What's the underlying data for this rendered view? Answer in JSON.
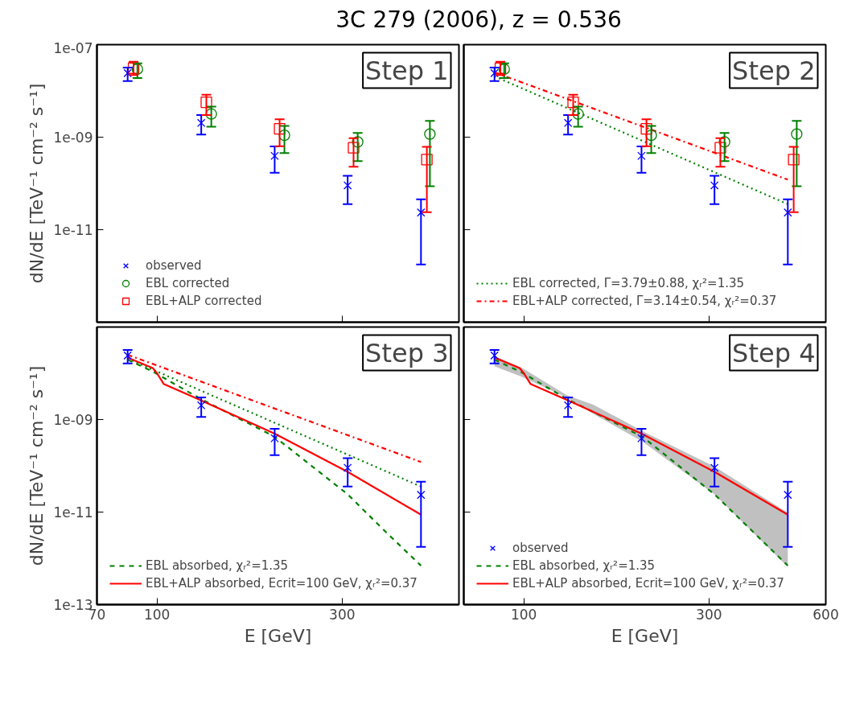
{
  "chart_data": [
    {
      "type": "scatter",
      "title": "3C 279 (2006), z = 0.536",
      "ylabel": "dN/dE [TeV⁻¹ cm⁻² s⁻¹]",
      "annotations": [
        "Step 1"
      ],
      "log": "xy",
      "xlim": [
        70,
        600
      ],
      "ylim": [
        1e-13,
        1e-07
      ],
      "xticks": [
        100,
        300
      ],
      "yticks": [
        {
          "value": 1e-07,
          "label": "1e-07"
        },
        {
          "value": 1e-09,
          "label": "1e-09"
        },
        {
          "value": 1e-11,
          "label": "1e-11"
        },
        {
          "value": 1e-13,
          "label": null
        }
      ],
      "tick_labels": "y",
      "grid": false,
      "legend": "bottom left",
      "series": [
        {
          "name": "observed",
          "color": "#0000ff",
          "marker": "cross",
          "x": [
            84,
            130,
            201,
            310,
            479
          ],
          "values": [
            2.43e-08,
            2.03e-09,
            3.94e-10,
            9.06e-11,
            2.35e-11
          ],
          "errors": [
            [
              1.64e-08,
              3.19e-08
            ],
            [
              1.14e-09,
              3.01e-09
            ],
            [
              1.7e-10,
              6.3e-10
            ],
            [
              3.56e-11,
              1.47e-10
            ],
            [
              1.77e-12,
              4.52e-11
            ]
          ]
        },
        {
          "name": "EBL corrected",
          "color": "#008000",
          "marker": "circle",
          "x": [
            89,
            138,
            213,
            329,
            505
          ],
          "values": [
            2.95e-08,
            3.17e-09,
            1.1e-09,
            7.9e-10,
            1.17e-09
          ],
          "errors": [
            [
              1.89e-08,
              3.94e-08
            ],
            [
              1.69e-09,
              4.58e-09
            ],
            [
              4.55e-10,
              1.76e-09
            ],
            [
              3.03e-10,
              1.23e-09
            ],
            [
              8.7e-11,
              2.26e-09
            ]
          ]
        },
        {
          "name": "EBL+ALP corrected",
          "color": "#ff0000",
          "marker": "square",
          "x": [
            87,
            134,
            207,
            321,
            496
          ],
          "values": [
            3.1e-08,
            5.7e-09,
            1.52e-09,
            5.9e-10,
            3.28e-10
          ],
          "errors": [
            [
              2.21e-08,
              4.25e-08
            ],
            [
              3e-09,
              8.3e-09
            ],
            [
              6.4e-10,
              2.44e-09
            ],
            [
              2.3e-10,
              9.5e-10
            ],
            [
              2.4e-11,
              6.2e-10
            ]
          ]
        }
      ]
    },
    {
      "type": "scatter",
      "annotations": [
        "Step 2"
      ],
      "log": "xy",
      "xlim": [
        70,
        600
      ],
      "ylim": [
        1e-13,
        1e-07
      ],
      "xticks": [
        100,
        300
      ],
      "yticks": [
        {
          "value": 1e-07,
          "label": null
        },
        {
          "value": 1e-09,
          "label": null
        },
        {
          "value": 1e-11,
          "label": null
        },
        {
          "value": 1e-13,
          "label": null
        }
      ],
      "tick_labels": false,
      "grid": false,
      "legend": "bottom left",
      "series": [
        {
          "color": "#0000ff",
          "marker": "cross",
          "x": [
            84,
            130,
            201,
            310,
            479
          ],
          "values": [
            2.43e-08,
            2.03e-09,
            3.94e-10,
            9.06e-11,
            2.35e-11
          ],
          "errors": [
            [
              1.64e-08,
              3.19e-08
            ],
            [
              1.14e-09,
              3.01e-09
            ],
            [
              1.7e-10,
              6.3e-10
            ],
            [
              3.56e-11,
              1.47e-10
            ],
            [
              1.77e-12,
              4.52e-11
            ]
          ]
        },
        {
          "color": "#008000",
          "marker": "circle",
          "x": [
            89,
            138,
            213,
            329,
            505
          ],
          "values": [
            2.95e-08,
            3.17e-09,
            1.1e-09,
            7.9e-10,
            1.17e-09
          ],
          "errors": [
            [
              1.89e-08,
              3.94e-08
            ],
            [
              1.69e-09,
              4.58e-09
            ],
            [
              4.55e-10,
              1.76e-09
            ],
            [
              3.03e-10,
              1.23e-09
            ],
            [
              8.7e-11,
              2.26e-09
            ]
          ]
        },
        {
          "color": "#ff0000",
          "marker": "square",
          "x": [
            87,
            134,
            207,
            321,
            496
          ],
          "values": [
            3.1e-08,
            5.7e-09,
            1.52e-09,
            5.9e-10,
            3.28e-10
          ],
          "errors": [
            [
              2.21e-08,
              4.25e-08
            ],
            [
              3e-09,
              8.3e-09
            ],
            [
              6.4e-10,
              2.44e-09
            ],
            [
              2.3e-10,
              9.5e-10
            ],
            [
              2.4e-11,
              6.2e-10
            ]
          ]
        },
        {
          "type": "line",
          "name": "EBL corrected, Γ=3.79±0.88, χᵣ²=1.35",
          "color": "#008000",
          "line_style": "dotted",
          "x": [
            84,
            479
          ],
          "values": [
            2.07e-08,
            3.56e-11
          ]
        },
        {
          "type": "line",
          "name": "EBL+ALP corrected, Γ=3.14±0.54, χᵣ²=0.37",
          "color": "#ff0000",
          "line_style": "dashdot",
          "x": [
            84,
            479
          ],
          "values": [
            2.52e-08,
            1.21e-10
          ]
        }
      ]
    },
    {
      "type": "scatter",
      "ylabel": "dN/dE [TeV⁻¹ cm⁻² s⁻¹]",
      "xlabel": "E [GeV]",
      "annotations": [
        "Step 3"
      ],
      "log": "xy",
      "xlim": [
        70,
        600
      ],
      "ylim": [
        1e-13,
        1e-07
      ],
      "xticks": [
        70,
        100,
        300
      ],
      "yticks": [
        {
          "value": 1e-07,
          "label": null
        },
        {
          "value": 1e-09,
          "label": "1e-09"
        },
        {
          "value": 1e-11,
          "label": "1e-11"
        },
        {
          "value": 1e-13,
          "label": "1e-13"
        }
      ],
      "grid": false,
      "legend": "bottom left",
      "series": [
        {
          "type": "line",
          "color": "#008000",
          "line_style": "dotted",
          "x": [
            84,
            479
          ],
          "values": [
            2.07e-08,
            3.56e-11
          ]
        },
        {
          "type": "line",
          "color": "#ff0000",
          "line_style": "dashdot",
          "x": [
            84,
            479
          ],
          "values": [
            2.52e-08,
            1.21e-10
          ]
        },
        {
          "type": "line",
          "name": "EBL absorbed, χᵣ²=1.35",
          "color": "#008000",
          "line_style": "dashed",
          "x": [
            84,
            97.5,
            130,
            201,
            310,
            387,
            479
          ],
          "values": [
            1.97e-08,
            1.09e-08,
            2.75e-09,
            4.25e-10,
            2.42e-11,
            3.85e-12,
            6.95e-13
          ]
        },
        {
          "type": "line",
          "name": "EBL+ALP absorbed, Ecrit=100 GeV, χᵣ²=0.37",
          "color": "#ff0000",
          "line_style": "solid",
          "x": [
            84,
            97.5,
            100,
            104,
            130,
            201,
            310,
            479
          ],
          "values": [
            2.19e-08,
            1.3e-08,
            1e-08,
            5.9e-09,
            2.58e-09,
            4.98e-10,
            7.41e-11,
            8.8e-12
          ]
        },
        {
          "color": "#0000ff",
          "marker": "cross",
          "x": [
            84,
            130,
            201,
            310,
            479
          ],
          "values": [
            2.43e-08,
            2.03e-09,
            3.94e-10,
            9.06e-11,
            2.35e-11
          ],
          "errors": [
            [
              1.64e-08,
              3.19e-08
            ],
            [
              1.14e-09,
              3.01e-09
            ],
            [
              1.7e-10,
              6.3e-10
            ],
            [
              3.56e-11,
              1.47e-10
            ],
            [
              1.77e-12,
              4.52e-11
            ]
          ]
        }
      ]
    },
    {
      "type": "scatter",
      "xlabel": "E [GeV]",
      "annotations": [
        "Step 4"
      ],
      "log": "xy",
      "xlim": [
        70,
        600
      ],
      "ylim": [
        1e-13,
        1e-07
      ],
      "xticks": [
        100,
        300,
        600
      ],
      "yticks": [
        {
          "value": 1e-07,
          "label": null
        },
        {
          "value": 1e-09,
          "label": null
        },
        {
          "value": 1e-11,
          "label": null
        },
        {
          "value": 1e-13,
          "label": null
        }
      ],
      "tick_labels": "x",
      "grid": false,
      "legend": "bottom left",
      "series": [
        {
          "name": "observed",
          "color": "#0000ff",
          "marker": "cross",
          "x": [
            84,
            130,
            201,
            310,
            479
          ],
          "values": [
            2.43e-08,
            2.03e-09,
            3.94e-10,
            9.06e-11,
            2.35e-11
          ],
          "errors": [
            [
              1.64e-08,
              3.19e-08
            ],
            [
              1.14e-09,
              3.01e-09
            ],
            [
              1.7e-10,
              6.3e-10
            ],
            [
              3.56e-11,
              1.47e-10
            ],
            [
              1.77e-12,
              4.52e-11
            ]
          ]
        },
        {
          "type": "line",
          "name": "EBL absorbed, χᵣ²=1.35",
          "color": "#008000",
          "line_style": "dashed",
          "x": [
            84,
            98.7,
            129.4,
            151,
            202,
            310,
            479
          ],
          "values": [
            1.97e-08,
            1.05e-08,
            2.75e-09,
            1.46e-09,
            4.25e-10,
            2.42e-11,
            6.95e-13
          ],
          "lower": [
            1.42e-08,
            8.4e-09,
            2.94e-09,
            1.33e-09,
            3.36e-10,
            2.42e-11,
            6.5e-13
          ],
          "upper": [
            2.4e-08,
            1.33e-08,
            3.34e-09,
            2.1e-09,
            5.66e-10,
            9.6e-11,
            9.7e-12
          ]
        },
        {
          "type": "line",
          "name": "EBL+ALP absorbed, Ecrit=100 GeV, χᵣ²=0.37",
          "color": "#ff0000",
          "line_style": "solid",
          "x": [
            84,
            97.5,
            100,
            104,
            130,
            201,
            310,
            479
          ],
          "values": [
            2.19e-08,
            1.3e-08,
            1e-08,
            5.9e-09,
            2.58e-09,
            4.98e-10,
            7.41e-11,
            8.8e-12
          ]
        }
      ]
    }
  ]
}
